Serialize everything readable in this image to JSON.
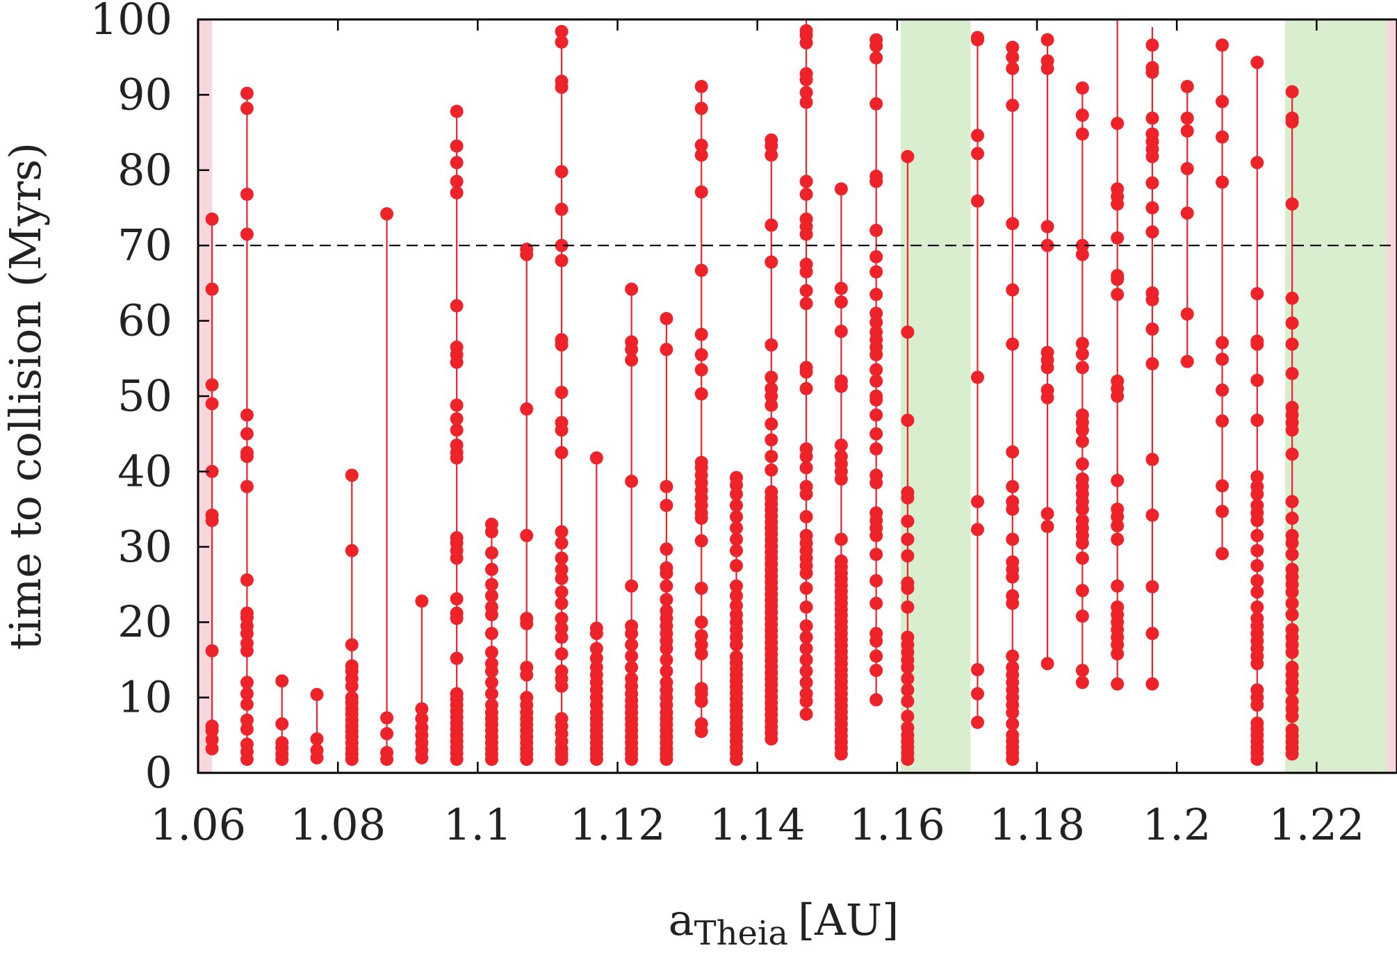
{
  "chart_data": {
    "type": "scatter",
    "xlabel_main": "a",
    "xlabel_sub": "Theia",
    "xlabel_unit": "[AU]",
    "ylabel": "time to collision (Myrs)",
    "xlim": [
      1.06,
      1.2315
    ],
    "ylim": [
      0,
      100
    ],
    "xticks": [
      1.06,
      1.08,
      1.1,
      1.12,
      1.14,
      1.16,
      1.18,
      1.2,
      1.22
    ],
    "xtick_labels": [
      "1.06",
      "1.08",
      "1.1",
      "1.12",
      "1.14",
      "1.16",
      "1.18",
      "1.2",
      "1.22"
    ],
    "yticks": [
      0,
      10,
      20,
      30,
      40,
      50,
      60,
      70,
      80,
      90,
      100
    ],
    "ytick_labels": [
      "0",
      "10",
      "20",
      "30",
      "40",
      "50",
      "60",
      "70",
      "80",
      "90",
      "100"
    ],
    "grid": false,
    "reference_line": {
      "y": 70,
      "style": "dashed",
      "color": "#000000"
    },
    "shaded_regions": [
      {
        "x0": 1.06,
        "x1": 1.062,
        "color": "#f8d7dc"
      },
      {
        "x0": 1.1605,
        "x1": 1.1705,
        "color": "#d9edcf"
      },
      {
        "x0": 1.2155,
        "x1": 1.23,
        "color": "#d9edcf"
      },
      {
        "x0": 1.23,
        "x1": 1.2315,
        "color": "#f8d7dc"
      }
    ],
    "marker_color": "#ee2229",
    "line_color": "#ee2229",
    "series": [
      {
        "x": 1.062,
        "line_top": 74,
        "values": [
          3.2,
          4.4,
          5.6,
          6.2,
          16.2,
          33.5,
          34.2,
          40.0,
          49.0,
          51.5,
          64.2,
          73.5
        ]
      },
      {
        "x": 1.067,
        "line_top": 90,
        "values": [
          1.8,
          2.8,
          3.8,
          5.8,
          7.0,
          9.1,
          10.5,
          12.0,
          16.2,
          17.2,
          18.5,
          19.5,
          20.6,
          21.2,
          25.6,
          38.0,
          42.0,
          42.5,
          45.0,
          47.5,
          71.5,
          76.8,
          88.2,
          90.2
        ]
      },
      {
        "x": 1.072,
        "line_top": 12,
        "values": [
          1.8,
          2.5,
          3.3,
          4.0,
          6.5,
          12.2
        ]
      },
      {
        "x": 1.077,
        "line_top": 10.5,
        "values": [
          2.0,
          3.0,
          4.5,
          10.4
        ]
      },
      {
        "x": 1.082,
        "line_top": 39.5,
        "values": [
          1.8,
          2.5,
          3.2,
          4.0,
          4.8,
          5.5,
          6.2,
          7.0,
          7.8,
          8.5,
          9.3,
          10.0,
          11.5,
          12.5,
          13.5,
          14.2,
          17.0,
          29.5,
          39.5
        ]
      },
      {
        "x": 1.087,
        "line_top": 74.2,
        "values": [
          1.8,
          2.7,
          5.2,
          7.3,
          74.2
        ]
      },
      {
        "x": 1.092,
        "line_top": 23,
        "values": [
          2.0,
          3.0,
          4.0,
          5.0,
          6.0,
          7.2,
          8.5,
          22.8
        ]
      },
      {
        "x": 1.097,
        "line_top": 87.8,
        "values": [
          1.8,
          2.6,
          3.4,
          4.2,
          5.0,
          5.8,
          6.6,
          7.4,
          8.2,
          9.0,
          9.8,
          10.5,
          15.2,
          20.5,
          21.2,
          23.1,
          28.5,
          29.5,
          30.5,
          31.2,
          41.8,
          42.5,
          43.5,
          45.5,
          47.0,
          48.8,
          54.5,
          55.5,
          56.5,
          62.0,
          77.0,
          78.5,
          81.0,
          83.2,
          87.8
        ]
      },
      {
        "x": 1.102,
        "line_top": 33,
        "values": [
          1.8,
          2.5,
          3.2,
          4.0,
          4.8,
          5.6,
          6.4,
          7.2,
          8.0,
          9.0,
          10.5,
          12.0,
          13.5,
          14.5,
          16.0,
          18.5,
          21.0,
          22.0,
          23.5,
          25.0,
          27.0,
          29.2,
          32.0,
          33.0
        ]
      },
      {
        "x": 1.107,
        "line_top": 70,
        "values": [
          1.8,
          2.5,
          3.2,
          4.0,
          4.8,
          5.6,
          6.4,
          7.2,
          8.0,
          9.0,
          10.0,
          13.0,
          14.0,
          19.8,
          20.5,
          31.5,
          48.3,
          68.8,
          69.5
        ]
      },
      {
        "x": 1.112,
        "line_top": 98.5,
        "values": [
          1.8,
          2.5,
          3.2,
          4.2,
          5.2,
          6.2,
          7.2,
          11.5,
          12.5,
          13.5,
          15.8,
          18.0,
          19.2,
          20.5,
          22.5,
          24.0,
          25.8,
          27.0,
          28.5,
          30.5,
          32.0,
          42.5,
          45.5,
          46.5,
          50.5,
          56.8,
          57.5,
          68.0,
          70.0,
          74.8,
          79.8,
          91.0,
          91.8,
          97.0,
          98.4
        ]
      },
      {
        "x": 1.117,
        "line_top": 42,
        "values": [
          1.8,
          2.5,
          3.2,
          4.0,
          4.8,
          5.6,
          6.4,
          7.2,
          8.0,
          9.0,
          10.0,
          11.0,
          12.0,
          13.0,
          14.0,
          15.2,
          16.5,
          18.5,
          19.2,
          41.8
        ]
      },
      {
        "x": 1.122,
        "line_top": 64,
        "values": [
          1.8,
          2.5,
          3.2,
          4.0,
          4.8,
          5.6,
          6.4,
          7.2,
          8.0,
          8.8,
          9.6,
          10.5,
          11.5,
          12.5,
          14.0,
          15.5,
          17.0,
          18.5,
          19.5,
          24.8,
          38.7,
          54.8,
          56.2,
          57.2,
          64.2
        ]
      },
      {
        "x": 1.127,
        "line_top": 60.5,
        "values": [
          1.8,
          2.5,
          3.2,
          4.0,
          4.8,
          5.6,
          6.4,
          7.2,
          8.0,
          9.0,
          10.0,
          11.0,
          12.0,
          13.5,
          15.0,
          16.5,
          17.5,
          18.5,
          19.5,
          20.5,
          21.5,
          23.0,
          24.8,
          26.5,
          27.2,
          29.7,
          35.5,
          38.0,
          56.2,
          60.3
        ]
      },
      {
        "x": 1.132,
        "line_top": 91.2,
        "values": [
          5.5,
          6.5,
          9.5,
          10.5,
          11.2,
          15.8,
          17.0,
          18.2,
          20.0,
          24.5,
          30.8,
          33.8,
          34.5,
          35.5,
          36.5,
          37.5,
          38.5,
          39.5,
          40.5,
          41.2,
          50.3,
          53.5,
          55.5,
          58.2,
          66.7,
          77.1,
          82.0,
          83.3,
          88.2,
          91.1
        ]
      },
      {
        "x": 1.137,
        "line_top": 39.5,
        "values": [
          1.8,
          2.6,
          3.4,
          4.2,
          5.0,
          5.8,
          6.6,
          7.4,
          8.2,
          9.0,
          9.8,
          10.6,
          11.4,
          12.2,
          13.0,
          13.8,
          14.6,
          15.4,
          17.0,
          18.0,
          19.0,
          20.0,
          21.0,
          22.2,
          23.5,
          24.8,
          27.5,
          29.5,
          31.0,
          32.5,
          34.0,
          35.5,
          37.0,
          38.2,
          39.2
        ]
      },
      {
        "x": 1.142,
        "line_top": 84,
        "values": [
          4.5,
          5.3,
          6.1,
          6.9,
          7.7,
          8.5,
          9.3,
          10.1,
          10.9,
          11.7,
          12.5,
          13.3,
          14.1,
          14.9,
          15.7,
          16.5,
          17.3,
          18.1,
          18.9,
          19.7,
          20.5,
          21.3,
          22.1,
          22.9,
          23.7,
          24.5,
          25.3,
          26.1,
          26.9,
          27.7,
          28.5,
          29.3,
          30.1,
          30.9,
          31.7,
          32.5,
          33.3,
          34.1,
          34.9,
          35.7,
          36.5,
          37.3,
          40.2,
          42.0,
          44.2,
          46.3,
          48.8,
          50.0,
          51.0,
          52.5,
          56.8,
          67.8,
          72.7,
          82.0,
          83.2,
          84.0
        ]
      },
      {
        "x": 1.147,
        "line_top": 100,
        "values": [
          7.8,
          9.5,
          10.5,
          12.0,
          13.5,
          15.0,
          16.5,
          18.0,
          19.5,
          22.0,
          24.5,
          26.5,
          27.5,
          28.5,
          29.5,
          30.5,
          31.5,
          34.0,
          37.0,
          38.0,
          40.5,
          42.0,
          43.0,
          51.0,
          53.2,
          53.8,
          62.3,
          64.0,
          66.5,
          67.5,
          71.5,
          72.5,
          73.5,
          76.8,
          78.5,
          89.0,
          90.3,
          92.0,
          92.8,
          96.9,
          97.9,
          98.5
        ]
      },
      {
        "x": 1.152,
        "line_top": 77.5,
        "values": [
          2.5,
          3.3,
          4.1,
          4.9,
          5.7,
          6.5,
          7.3,
          8.1,
          8.9,
          9.7,
          10.5,
          11.3,
          12.1,
          12.9,
          13.7,
          14.5,
          15.3,
          16.1,
          16.9,
          17.7,
          18.5,
          19.3,
          20.1,
          20.9,
          21.7,
          22.5,
          23.3,
          24.1,
          24.9,
          25.7,
          26.5,
          27.3,
          28.1,
          31.0,
          39.0,
          40.0,
          41.0,
          42.0,
          43.5,
          51.3,
          52.0,
          58.6,
          62.5,
          64.3,
          77.5
        ]
      },
      {
        "x": 1.157,
        "line_top": 97.5,
        "values": [
          9.7,
          13.6,
          15.5,
          17.5,
          18.5,
          22.5,
          25.5,
          29.0,
          31.5,
          32.5,
          33.5,
          34.5,
          38.5,
          39.5,
          43.0,
          45.0,
          47.5,
          49.5,
          50.0,
          52.0,
          53.5,
          55.5,
          56.5,
          57.5,
          58.5,
          59.8,
          61.0,
          63.5,
          66.5,
          68.5,
          72.0,
          78.5,
          79.2,
          88.8,
          94.9,
          96.5,
          97.3
        ]
      },
      {
        "x": 1.1615,
        "line_top": 82,
        "values": [
          1.8,
          2.6,
          3.4,
          4.2,
          5.0,
          6.0,
          7.5,
          9.5,
          11.0,
          12.5,
          14.0,
          15.0,
          16.0,
          17.0,
          18.0,
          22.0,
          24.5,
          25.2,
          28.8,
          31.0,
          33.4,
          36.5,
          37.2,
          46.8,
          58.5,
          81.8
        ]
      },
      {
        "x": 1.1715,
        "line_top": 97.5,
        "values": [
          6.7,
          10.5,
          13.7,
          32.3,
          36.0,
          52.5,
          75.9,
          82.2,
          84.6,
          97.3,
          97.6
        ]
      },
      {
        "x": 1.1765,
        "line_top": 96.5,
        "values": [
          1.8,
          2.6,
          3.4,
          4.2,
          5.0,
          6.5,
          8.0,
          9.0,
          10.0,
          11.0,
          12.0,
          13.0,
          14.0,
          15.5,
          22.5,
          23.5,
          26.0,
          27.0,
          28.0,
          31.0,
          35.0,
          36.0,
          38.0,
          42.6,
          56.9,
          64.1,
          72.9,
          88.6,
          93.5,
          95.0,
          96.3
        ]
      },
      {
        "x": 1.1815,
        "line_top": 97.5,
        "values": [
          14.5,
          32.7,
          34.4,
          49.8,
          50.8,
          53.8,
          54.8,
          55.8,
          70.0,
          72.5,
          93.5,
          94.5,
          97.3
        ]
      },
      {
        "x": 1.1865,
        "line_top": 91,
        "values": [
          12.0,
          13.6,
          20.8,
          24.2,
          28.5,
          30.5,
          31.5,
          32.5,
          33.5,
          35.0,
          36.0,
          37.0,
          38.0,
          39.0,
          41.0,
          44.0,
          45.5,
          46.5,
          47.5,
          53.8,
          55.6,
          57.0,
          68.8,
          70.0,
          84.8,
          87.3,
          90.9
        ]
      },
      {
        "x": 1.1915,
        "line_top": 100,
        "values": [
          11.8,
          15.8,
          17.0,
          18.0,
          19.0,
          20.0,
          21.0,
          22.0,
          24.8,
          31.0,
          32.8,
          34.0,
          35.0,
          38.8,
          50.0,
          51.0,
          52.0,
          63.5,
          65.5,
          66.0,
          71.0,
          75.5,
          76.5,
          77.5,
          86.2
        ]
      },
      {
        "x": 1.1965,
        "line_top": 99,
        "values": [
          11.8,
          18.5,
          24.7,
          34.2,
          41.6,
          54.3,
          58.9,
          62.8,
          63.7,
          71.8,
          75.0,
          78.3,
          81.8,
          82.8,
          83.8,
          84.8,
          86.9,
          93.0,
          93.6,
          96.6
        ]
      },
      {
        "x": 1.2015,
        "line_top": 91,
        "values": [
          54.6,
          60.9,
          74.3,
          80.2,
          85.2,
          86.9,
          91.1
        ]
      },
      {
        "x": 1.2065,
        "line_top": 96.5,
        "values": [
          29.1,
          34.7,
          38.1,
          46.7,
          50.8,
          54.9,
          57.1,
          78.4,
          84.4,
          89.1,
          96.6
        ]
      },
      {
        "x": 1.2115,
        "line_top": 94.5,
        "values": [
          1.8,
          2.6,
          3.4,
          4.2,
          5.0,
          5.8,
          6.6,
          9.0,
          10.0,
          11.0,
          14.5,
          15.5,
          16.5,
          17.5,
          18.5,
          19.5,
          20.5,
          22.0,
          24.0,
          25.5,
          27.5,
          29.5,
          31.5,
          33.5,
          34.5,
          35.5,
          37.0,
          38.0,
          39.3,
          46.8,
          52.1,
          56.9,
          57.3,
          63.6,
          81.0,
          94.3
        ]
      },
      {
        "x": 1.2165,
        "line_top": 90.5,
        "values": [
          2.5,
          3.3,
          4.1,
          4.9,
          5.7,
          7.5,
          8.5,
          9.5,
          11.0,
          12.0,
          13.0,
          14.0,
          16.0,
          17.0,
          18.0,
          19.0,
          21.0,
          22.5,
          24.0,
          25.0,
          26.0,
          27.0,
          29.0,
          30.5,
          31.5,
          33.8,
          36.0,
          42.3,
          45.5,
          46.5,
          47.5,
          48.5,
          53.0,
          56.9,
          59.7,
          63.0,
          75.5,
          86.4,
          86.9,
          90.4
        ]
      }
    ]
  }
}
